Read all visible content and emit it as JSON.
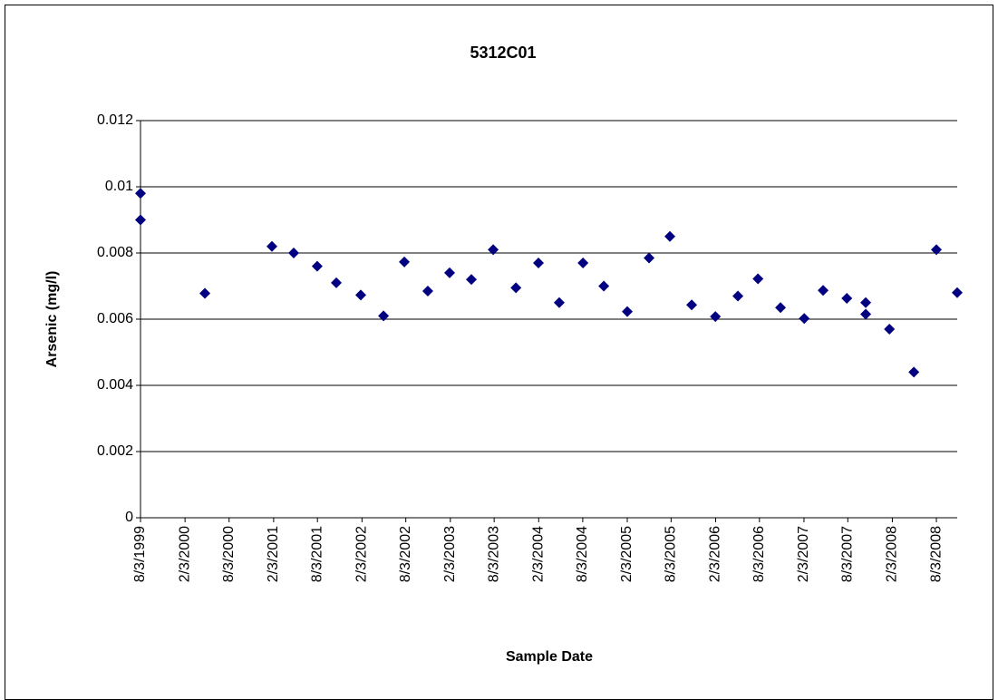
{
  "chart_data": {
    "type": "scatter",
    "title": "5312C01",
    "x_label": "Sample Date",
    "y_label": "Arsenic (mg/l)",
    "color": "#000080",
    "grid": true,
    "x": [
      "1999-08-03",
      "1999-08-03",
      "2000-04-25",
      "2001-01-27",
      "2001-04-27",
      "2001-08-02",
      "2001-10-20",
      "2002-01-29",
      "2002-05-03",
      "2002-07-28",
      "2002-11-02",
      "2003-01-31",
      "2003-05-01",
      "2003-07-30",
      "2003-11-01",
      "2004-02-02",
      "2004-04-28",
      "2004-08-04",
      "2004-10-29",
      "2005-02-03",
      "2005-05-04",
      "2005-07-29",
      "2005-10-27",
      "2006-02-02",
      "2006-05-06",
      "2006-07-28",
      "2006-10-29",
      "2007-02-04",
      "2007-04-23",
      "2007-07-30",
      "2007-10-16",
      "2007-10-16",
      "2008-01-22",
      "2008-05-02",
      "2008-08-03",
      "2008-10-28"
    ],
    "values": [
      0.0098,
      0.009,
      0.00678,
      0.0082,
      0.008,
      0.0076,
      0.0071,
      0.00673,
      0.0061,
      0.00773,
      0.00685,
      0.0074,
      0.0072,
      0.0081,
      0.00695,
      0.0077,
      0.0065,
      0.0077,
      0.007,
      0.00623,
      0.00785,
      0.0085,
      0.00643,
      0.00608,
      0.0067,
      0.00722,
      0.00635,
      0.00602,
      0.00687,
      0.00663,
      0.0065,
      0.00615,
      0.0057,
      0.0044,
      0.0081,
      0.0068
    ],
    "xlim": [
      "1999-08-03",
      "2008-10-28"
    ],
    "xticks": [
      {
        "value": "1999-08-03",
        "label": "8/3/1999"
      },
      {
        "value": "2000-02-03",
        "label": "2/3/2000"
      },
      {
        "value": "2000-08-03",
        "label": "8/3/2000"
      },
      {
        "value": "2001-02-03",
        "label": "2/3/2001"
      },
      {
        "value": "2001-08-03",
        "label": "8/3/2001"
      },
      {
        "value": "2002-02-03",
        "label": "2/3/2002"
      },
      {
        "value": "2002-08-03",
        "label": "8/3/2002"
      },
      {
        "value": "2003-02-03",
        "label": "2/3/2003"
      },
      {
        "value": "2003-08-03",
        "label": "8/3/2003"
      },
      {
        "value": "2004-02-03",
        "label": "2/3/2004"
      },
      {
        "value": "2004-08-03",
        "label": "8/3/2004"
      },
      {
        "value": "2005-02-03",
        "label": "2/3/2005"
      },
      {
        "value": "2005-08-03",
        "label": "8/3/2005"
      },
      {
        "value": "2006-02-03",
        "label": "2/3/2006"
      },
      {
        "value": "2006-08-03",
        "label": "8/3/2006"
      },
      {
        "value": "2007-02-03",
        "label": "2/3/2007"
      },
      {
        "value": "2007-08-03",
        "label": "8/3/2007"
      },
      {
        "value": "2008-02-03",
        "label": "2/3/2008"
      },
      {
        "value": "2008-08-03",
        "label": "8/3/2008"
      }
    ],
    "ylim": [
      0,
      0.012
    ],
    "yticks": [
      0,
      0.002,
      0.004,
      0.006,
      0.008,
      0.01,
      0.012
    ]
  }
}
